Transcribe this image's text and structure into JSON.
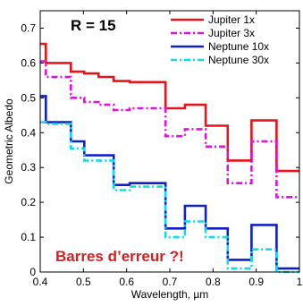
{
  "chart_data": {
    "type": "line",
    "step": true,
    "title": "",
    "xlabel": "Wavelength, µm",
    "ylabel": "Geometric Albedo",
    "xlim": [
      0.4,
      1.0
    ],
    "ylim": [
      0,
      0.75
    ],
    "xticks": [
      0.4,
      0.5,
      0.6,
      0.7,
      0.8,
      0.9,
      1.0
    ],
    "xtick_labels": [
      "0.4",
      "0.5",
      "0.6",
      "0.7",
      "0.8",
      "0.9",
      "1"
    ],
    "yticks": [
      0,
      0.1,
      0.2,
      0.3,
      0.4,
      0.5,
      0.6,
      0.7
    ],
    "ytick_labels": [
      "0",
      "0.1",
      "0.2",
      "0.3",
      "0.4",
      "0.5",
      "0.6",
      "0.7"
    ],
    "grid": false,
    "legend_position": "top-right",
    "annotations": [
      {
        "text": "R = 15",
        "color": "#000000",
        "position": "top-left"
      },
      {
        "text": "Barres d’erreur ?!",
        "color": "#d81e1e",
        "position": "bottom-left"
      }
    ],
    "edges": [
      0.4,
      0.413,
      0.441,
      0.471,
      0.502,
      0.535,
      0.57,
      0.607,
      0.647,
      0.69,
      0.735,
      0.783,
      0.834,
      0.889,
      0.947,
      1.0
    ],
    "series": [
      {
        "name": "Jupiter 1x",
        "color": "#e8141c",
        "dash": "solid",
        "values": [
          0.655,
          0.6,
          0.6,
          0.575,
          0.57,
          0.56,
          0.548,
          0.545,
          0.545,
          0.47,
          0.48,
          0.42,
          0.32,
          0.435,
          0.29
        ]
      },
      {
        "name": "Jupiter 3x",
        "color": "#e010e0",
        "dash": "dashdot",
        "values": [
          0.605,
          0.56,
          0.56,
          0.5,
          0.488,
          0.48,
          0.465,
          0.47,
          0.47,
          0.39,
          0.41,
          0.36,
          0.255,
          0.375,
          0.215
        ]
      },
      {
        "name": "Neptune 10x",
        "color": "#1020c8",
        "dash": "solid",
        "values": [
          0.505,
          0.43,
          0.43,
          0.375,
          0.335,
          0.335,
          0.25,
          0.255,
          0.255,
          0.125,
          0.19,
          0.125,
          0.035,
          0.135,
          0.01
        ]
      },
      {
        "name": "Neptune 30x",
        "color": "#10dce8",
        "dash": "dashdot",
        "values": [
          0.43,
          0.425,
          0.425,
          0.355,
          0.32,
          0.32,
          0.235,
          0.245,
          0.245,
          0.1,
          0.145,
          0.1,
          0.01,
          0.065,
          0.0
        ]
      }
    ]
  }
}
